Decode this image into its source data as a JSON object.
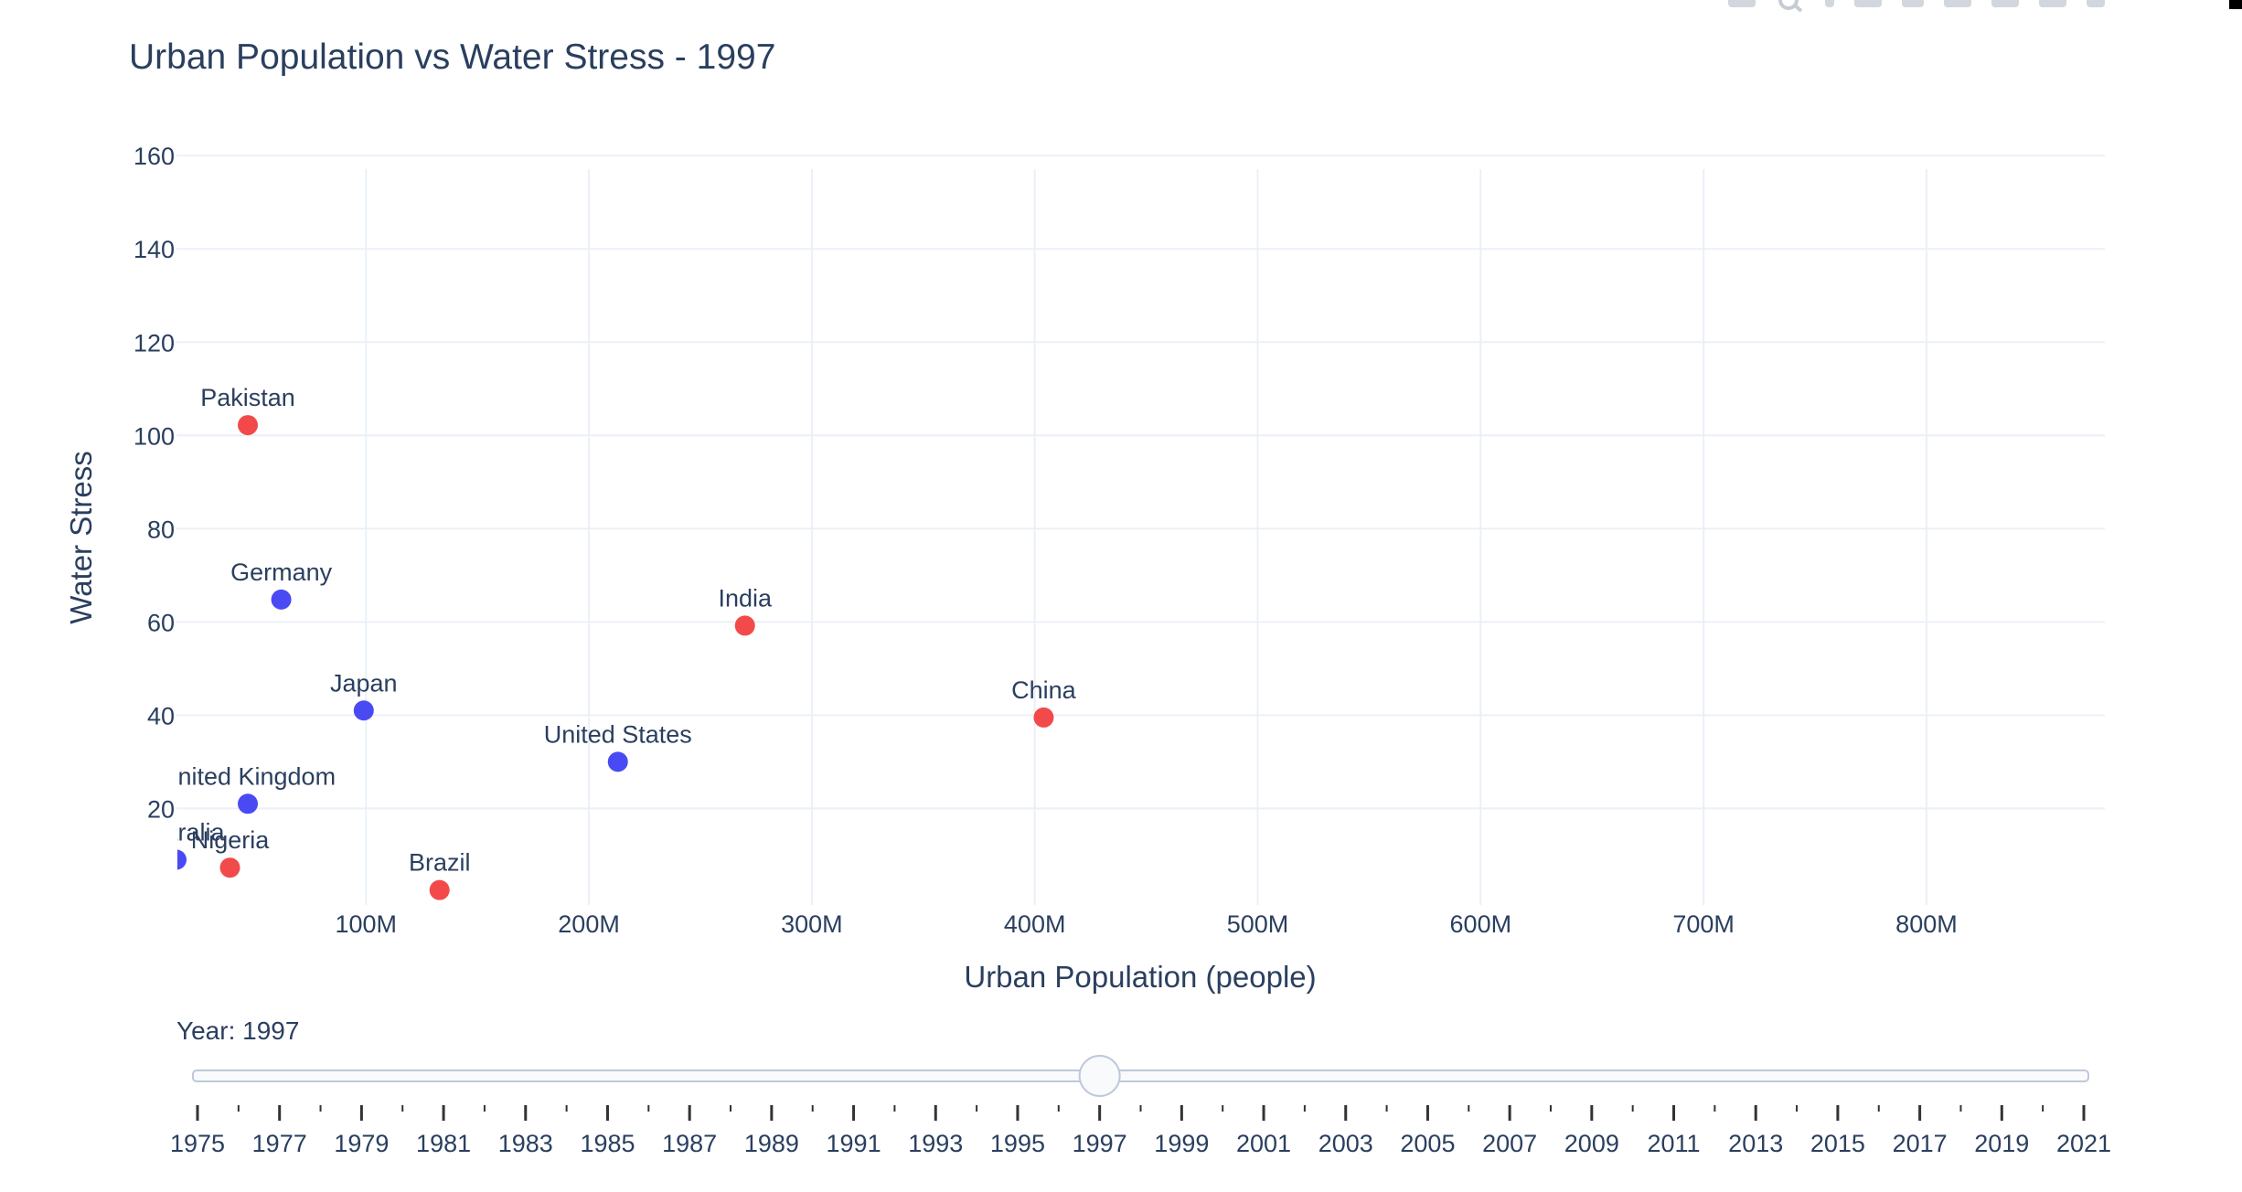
{
  "modebar": {
    "icons": [
      "camera-icon",
      "zoom-icon",
      "pan-icon",
      "box-select-icon",
      "lasso-icon",
      "zoom-in-icon",
      "zoom-out-icon",
      "autoscale-icon",
      "reset-axes-icon"
    ]
  },
  "chart_data": {
    "type": "scatter",
    "title": "Urban Population vs Water Stress - 1997",
    "xlabel": "Urban Population (people)",
    "ylabel": "Water Stress",
    "xlim": [
      15000000,
      880000000
    ],
    "ylim": [
      -0.7,
      162
    ],
    "x_ticks": [
      100000000,
      200000000,
      300000000,
      400000000,
      500000000,
      600000000,
      700000000,
      800000000
    ],
    "x_tick_labels": [
      "100M",
      "200M",
      "300M",
      "400M",
      "500M",
      "600M",
      "700M",
      "800M"
    ],
    "y_ticks": [
      20,
      40,
      60,
      80,
      100,
      120,
      140,
      160
    ],
    "y_tick_labels": [
      "20",
      "40",
      "60",
      "80",
      "100",
      "120",
      "140",
      "160"
    ],
    "grid": true,
    "colors": {
      "blue": "#4a4af4",
      "red": "#f24a4a",
      "grid": "#ebf0f8",
      "text": "#2a3f5f"
    },
    "points": [
      {
        "label": "Pakistan",
        "x": 47000000,
        "y": 102.2,
        "color": "red"
      },
      {
        "label": "Germany",
        "x": 62000000,
        "y": 64.8,
        "color": "blue"
      },
      {
        "label": "India",
        "x": 270000000,
        "y": 59.2,
        "color": "red"
      },
      {
        "label": "Japan",
        "x": 99000000,
        "y": 41.0,
        "color": "blue"
      },
      {
        "label": "China",
        "x": 404000000,
        "y": 39.5,
        "color": "red"
      },
      {
        "label": "United States",
        "x": 213000000,
        "y": 30.0,
        "color": "blue"
      },
      {
        "label": "United Kingdom",
        "x": 47000000,
        "y": 21.0,
        "color": "blue"
      },
      {
        "label": "Australia",
        "x": 15000000,
        "y": 9.0,
        "color": "blue"
      },
      {
        "label": "Nigeria",
        "x": 39000000,
        "y": 7.3,
        "color": "red"
      },
      {
        "label": "Brazil",
        "x": 133000000,
        "y": 2.5,
        "color": "red"
      }
    ]
  },
  "slider": {
    "label": "Year: 1997",
    "min": 1975,
    "max": 2021,
    "value": 1997,
    "tick_labels": [
      "1975",
      "1977",
      "1979",
      "1981",
      "1983",
      "1985",
      "1987",
      "1989",
      "1991",
      "1993",
      "1995",
      "1997",
      "1999",
      "2001",
      "2003",
      "2005",
      "2007",
      "2009",
      "2011",
      "2013",
      "2015",
      "2017",
      "2019",
      "2021"
    ]
  }
}
